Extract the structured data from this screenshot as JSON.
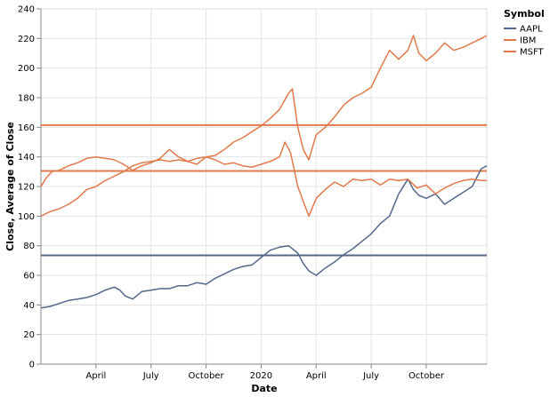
{
  "chart_data": {
    "type": "line",
    "title": "",
    "xlabel": "Date",
    "ylabel": "Close, Average of Close",
    "ylim": [
      0,
      240
    ],
    "y_ticks": [
      "0",
      "20",
      "40",
      "60",
      "80",
      "100",
      "120",
      "140",
      "160",
      "180",
      "200",
      "220",
      "240"
    ],
    "x_ticks": [
      "April",
      "July",
      "October",
      "2020",
      "April",
      "July",
      "October"
    ],
    "x_tick_positions": [
      3.0,
      6.0,
      9.0,
      12.0,
      15.0,
      18.0,
      21.0
    ],
    "x_range": [
      0,
      24.3
    ],
    "grid": true,
    "legend_title": "Symbol",
    "legend_position": "top-right",
    "series": [
      {
        "name": "AAPL",
        "color": "#54698a",
        "average": 73.5,
        "points": [
          [
            0,
            38
          ],
          [
            0.5,
            39
          ],
          [
            1,
            41
          ],
          [
            1.5,
            43
          ],
          [
            2,
            44
          ],
          [
            2.5,
            45
          ],
          [
            3,
            47
          ],
          [
            3.5,
            50
          ],
          [
            4,
            52
          ],
          [
            4.3,
            50
          ],
          [
            4.6,
            46
          ],
          [
            5,
            44
          ],
          [
            5.5,
            49
          ],
          [
            6,
            50
          ],
          [
            6.5,
            51
          ],
          [
            7,
            51
          ],
          [
            7.5,
            53
          ],
          [
            8,
            53
          ],
          [
            8.5,
            55
          ],
          [
            9,
            54
          ],
          [
            9.5,
            58
          ],
          [
            10,
            61
          ],
          [
            10.5,
            64
          ],
          [
            11,
            66
          ],
          [
            11.5,
            67
          ],
          [
            12,
            72
          ],
          [
            12.5,
            77
          ],
          [
            13,
            79
          ],
          [
            13.5,
            80
          ],
          [
            14,
            75
          ],
          [
            14.3,
            68
          ],
          [
            14.6,
            63
          ],
          [
            15,
            60
          ],
          [
            15.5,
            65
          ],
          [
            16,
            69
          ],
          [
            16.5,
            74
          ],
          [
            17,
            78
          ],
          [
            17.5,
            83
          ],
          [
            18,
            88
          ],
          [
            18.5,
            95
          ],
          [
            19,
            100
          ],
          [
            19.5,
            115
          ],
          [
            20,
            125
          ],
          [
            20.3,
            118
          ],
          [
            20.6,
            114
          ],
          [
            21,
            112
          ],
          [
            21.5,
            115
          ],
          [
            22,
            108
          ],
          [
            22.5,
            112
          ],
          [
            23,
            116
          ],
          [
            23.5,
            120
          ],
          [
            24,
            132
          ],
          [
            24.3,
            134
          ]
        ]
      },
      {
        "name": "IBM",
        "color": "#e07a4a",
        "average": 130.5,
        "points": [
          [
            0,
            120
          ],
          [
            0.3,
            126
          ],
          [
            0.6,
            130
          ],
          [
            1,
            131
          ],
          [
            1.5,
            134
          ],
          [
            2,
            136
          ],
          [
            2.5,
            139
          ],
          [
            3,
            140
          ],
          [
            3.5,
            139
          ],
          [
            4,
            138
          ],
          [
            4.5,
            135
          ],
          [
            5,
            131
          ],
          [
            5.5,
            134
          ],
          [
            6,
            136
          ],
          [
            6.5,
            139
          ],
          [
            7,
            145
          ],
          [
            7.5,
            140
          ],
          [
            8,
            137
          ],
          [
            8.5,
            135
          ],
          [
            9,
            140
          ],
          [
            9.5,
            138
          ],
          [
            10,
            135
          ],
          [
            10.5,
            136
          ],
          [
            11,
            134
          ],
          [
            11.5,
            133
          ],
          [
            12,
            135
          ],
          [
            12.5,
            137
          ],
          [
            13,
            140
          ],
          [
            13.3,
            150
          ],
          [
            13.6,
            143
          ],
          [
            14,
            120
          ],
          [
            14.3,
            110
          ],
          [
            14.6,
            100
          ],
          [
            15,
            112
          ],
          [
            15.5,
            118
          ],
          [
            16,
            123
          ],
          [
            16.5,
            120
          ],
          [
            17,
            125
          ],
          [
            17.5,
            124
          ],
          [
            18,
            125
          ],
          [
            18.5,
            121
          ],
          [
            19,
            125
          ],
          [
            19.5,
            124
          ],
          [
            20,
            125
          ],
          [
            20.5,
            119
          ],
          [
            21,
            121
          ],
          [
            21.5,
            115
          ],
          [
            22,
            119
          ],
          [
            22.5,
            122
          ],
          [
            23,
            124
          ],
          [
            23.5,
            125
          ],
          [
            24,
            124
          ],
          [
            24.3,
            124
          ]
        ]
      },
      {
        "name": "MSFT",
        "color": "#e07a4a",
        "average": 161.5,
        "points": [
          [
            0,
            100
          ],
          [
            0.5,
            103
          ],
          [
            1,
            105
          ],
          [
            1.5,
            108
          ],
          [
            2,
            112
          ],
          [
            2.5,
            118
          ],
          [
            3,
            120
          ],
          [
            3.5,
            124
          ],
          [
            4,
            127
          ],
          [
            4.5,
            130
          ],
          [
            5,
            134
          ],
          [
            5.5,
            136
          ],
          [
            6,
            137
          ],
          [
            6.5,
            138
          ],
          [
            7,
            137
          ],
          [
            7.5,
            138
          ],
          [
            8,
            137
          ],
          [
            8.5,
            139
          ],
          [
            9,
            140
          ],
          [
            9.5,
            141
          ],
          [
            10,
            145
          ],
          [
            10.5,
            150
          ],
          [
            11,
            153
          ],
          [
            11.5,
            157
          ],
          [
            12,
            161
          ],
          [
            12.5,
            166
          ],
          [
            13,
            172
          ],
          [
            13.5,
            183
          ],
          [
            13.7,
            186
          ],
          [
            14,
            160
          ],
          [
            14.3,
            145
          ],
          [
            14.6,
            138
          ],
          [
            15,
            155
          ],
          [
            15.5,
            160
          ],
          [
            16,
            167
          ],
          [
            16.5,
            175
          ],
          [
            17,
            180
          ],
          [
            17.5,
            183
          ],
          [
            18,
            187
          ],
          [
            18.5,
            200
          ],
          [
            19,
            212
          ],
          [
            19.5,
            206
          ],
          [
            20,
            212
          ],
          [
            20.3,
            222
          ],
          [
            20.6,
            210
          ],
          [
            21,
            205
          ],
          [
            21.5,
            210
          ],
          [
            22,
            217
          ],
          [
            22.5,
            212
          ],
          [
            23,
            214
          ],
          [
            23.5,
            217
          ],
          [
            24,
            220
          ],
          [
            24.3,
            222
          ]
        ]
      }
    ]
  }
}
